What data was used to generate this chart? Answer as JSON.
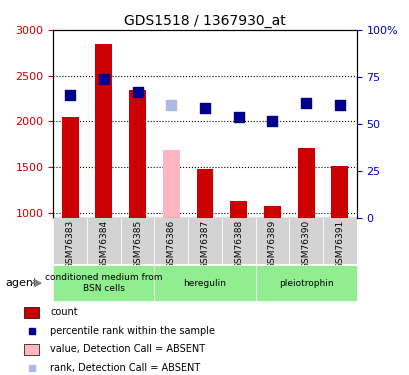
{
  "title": "GDS1518 / 1367930_at",
  "samples": [
    "GSM76383",
    "GSM76384",
    "GSM76385",
    "GSM76386",
    "GSM76387",
    "GSM76388",
    "GSM76389",
    "GSM76390",
    "GSM76391"
  ],
  "counts": [
    2050,
    2850,
    2340,
    null,
    1480,
    1130,
    1080,
    1710,
    1510
  ],
  "counts_absent": [
    null,
    null,
    null,
    1690,
    null,
    null,
    null,
    null,
    null
  ],
  "ranks": [
    2290,
    2460,
    2320,
    null,
    2150,
    2050,
    2000,
    2200,
    2180
  ],
  "ranks_absent": [
    null,
    null,
    null,
    2185,
    null,
    null,
    null,
    null,
    null
  ],
  "absent": [
    false,
    false,
    false,
    true,
    false,
    false,
    false,
    false,
    false
  ],
  "ylim_left": [
    950,
    3000
  ],
  "ylim_right": [
    0,
    100
  ],
  "yticks_left": [
    1000,
    1500,
    2000,
    2500,
    3000
  ],
  "yticks_right": [
    0,
    25,
    50,
    75,
    100
  ],
  "groups": [
    {
      "label": "conditioned medium from\nBSN cells",
      "start": 0,
      "end": 2,
      "color": "#90ee90"
    },
    {
      "label": "heregulin",
      "start": 3,
      "end": 5,
      "color": "#90ee90"
    },
    {
      "label": "pleiotrophin",
      "start": 6,
      "end": 8,
      "color": "#90ee90"
    }
  ],
  "bar_color": "#cc0000",
  "bar_absent_color": "#ffb6c1",
  "rank_color": "#00008b",
  "rank_absent_color": "#b0b8e8",
  "bar_width": 0.5,
  "rank_marker_size": 60,
  "grid_color": "#000000",
  "tick_label_color_left": "#cc0000",
  "tick_label_color_right": "#0000cc",
  "legend_items": [
    {
      "label": "count",
      "color": "#cc0000",
      "type": "bar"
    },
    {
      "label": "percentile rank within the sample",
      "color": "#00008b",
      "type": "scatter"
    },
    {
      "label": "value, Detection Call = ABSENT",
      "color": "#ffb6c1",
      "type": "bar"
    },
    {
      "label": "rank, Detection Call = ABSENT",
      "color": "#b0b8e8",
      "type": "scatter"
    }
  ],
  "agent_label": "agent",
  "scale_factor": 25
}
